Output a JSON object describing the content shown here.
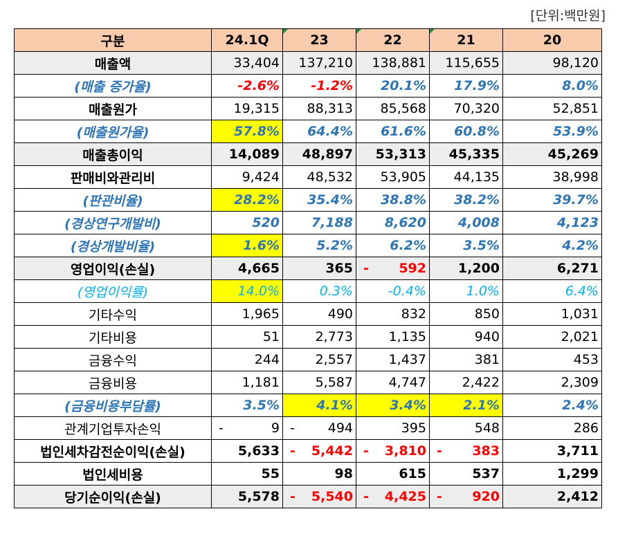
{
  "unit_label": "[단위:백만원]",
  "headers": [
    "구분",
    "24.1Q",
    "23",
    "22",
    "21",
    "20"
  ],
  "rows": [
    {
      "label": "매출액",
      "style": "gray bold-label",
      "values": [
        "33,404",
        "137,210",
        "138,881",
        "115,655",
        "98,120"
      ]
    },
    {
      "label": "(매출 증가율)",
      "style": "ital",
      "values": [
        "-2.6%",
        "-1.2%",
        "20.1%",
        "17.9%",
        "8.0%"
      ]
    },
    {
      "label": "매출원가",
      "style": "bold-label",
      "values": [
        "19,315",
        "88,313",
        "85,568",
        "70,320",
        "52,851"
      ]
    },
    {
      "label": "(매출원가율)",
      "style": "ital",
      "values": [
        "57.8%",
        "64.4%",
        "61.6%",
        "60.8%",
        "53.9%"
      ]
    },
    {
      "label": "매출총이익",
      "style": "gray bold",
      "values": [
        "14,089",
        "48,897",
        "53,313",
        "45,335",
        "45,269"
      ]
    },
    {
      "label": "판매비와관리비",
      "style": "bold-label",
      "values": [
        "9,424",
        "48,532",
        "53,905",
        "44,135",
        "38,998"
      ]
    },
    {
      "label": "(판관비율)",
      "style": "ital",
      "values": [
        "28.2%",
        "35.4%",
        "38.8%",
        "38.2%",
        "39.7%"
      ]
    },
    {
      "label": "(경상연구개발비)",
      "style": "ital",
      "values": [
        "520",
        "7,188",
        "8,620",
        "4,008",
        "4,123"
      ]
    },
    {
      "label": "(경상개발비율)",
      "style": "ital",
      "values": [
        "1.6%",
        "5.2%",
        "6.2%",
        "3.5%",
        "4.2%"
      ]
    },
    {
      "label": "영업이익(손실)",
      "style": "gray bold",
      "values": [
        "4,665",
        "365",
        "592",
        "1,200",
        "6,271"
      ]
    },
    {
      "label": "(영업이익률)",
      "style": "light",
      "values": [
        "14.0%",
        "0.3%",
        "-0.4%",
        "1.0%",
        "6.4%"
      ]
    },
    {
      "label": "기타수익",
      "style": "plain",
      "values": [
        "1,965",
        "490",
        "832",
        "850",
        "1,031"
      ]
    },
    {
      "label": "기타비용",
      "style": "plain",
      "values": [
        "51",
        "2,773",
        "1,135",
        "940",
        "2,021"
      ]
    },
    {
      "label": "금융수익",
      "style": "plain",
      "values": [
        "244",
        "2,557",
        "1,437",
        "381",
        "453"
      ]
    },
    {
      "label": "금융비용",
      "style": "plain",
      "values": [
        "1,181",
        "5,587",
        "4,747",
        "2,422",
        "2,309"
      ]
    },
    {
      "label": "(금융비용부담률)",
      "style": "ital",
      "values": [
        "3.5%",
        "4.1%",
        "3.4%",
        "2.1%",
        "2.4%"
      ]
    },
    {
      "label": "관계기업투자손익",
      "style": "plain",
      "values": [
        "9",
        "494",
        "395",
        "548",
        "286"
      ]
    },
    {
      "label": "법인세차감전순이익(손실)",
      "style": "bold",
      "values": [
        "5,633",
        "5,442",
        "3,810",
        "383",
        "3,711"
      ]
    },
    {
      "label": "법인세비용",
      "style": "bold",
      "values": [
        "55",
        "98",
        "615",
        "537",
        "1,299"
      ]
    },
    {
      "label": "당기순이익(손실)",
      "style": "gray bold",
      "values": [
        "5,578",
        "5,540",
        "4,425",
        "920",
        "2,412"
      ]
    }
  ],
  "dash_symbol": "-",
  "colors": {
    "header_bg": "#f8cbad",
    "gray_row": "#ededed",
    "highlight": "#ffff00",
    "ratio_blue": "#2e75b6",
    "margin_cyan": "#00b0f0",
    "negative_red": "#ff0000"
  }
}
